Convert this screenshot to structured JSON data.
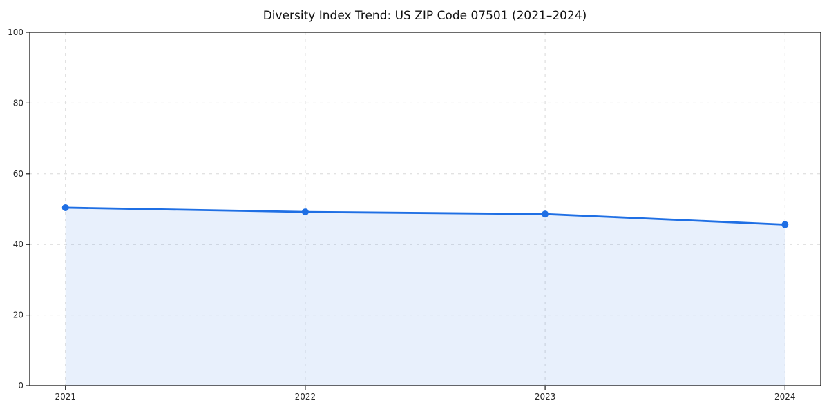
{
  "chart_data": {
    "type": "line",
    "title": "Diversity Index Trend: US ZIP Code 07501 (2021–2024)",
    "x": [
      "2021",
      "2022",
      "2023",
      "2024"
    ],
    "series": [
      {
        "name": "Diversity Index",
        "values": [
          50.4,
          49.2,
          48.6,
          45.6
        ]
      }
    ],
    "xlabel": "",
    "ylabel": "",
    "ylim": [
      0,
      100
    ],
    "yticks": [
      0,
      20,
      40,
      60,
      80,
      100
    ],
    "x_margin_years": 0.149,
    "grid": "dashed, horizontal and vertical",
    "legend": "none",
    "area_fill": true,
    "colors": {
      "line": "#1f6fe4",
      "marker": "#1f6fe4",
      "area_fill": "#1f6fe4",
      "area_fill_opacity": 0.1,
      "grid": "#d8d8d8",
      "axis": "#1a1a1a",
      "tick_label": "#262626",
      "background": "#ffffff"
    }
  }
}
